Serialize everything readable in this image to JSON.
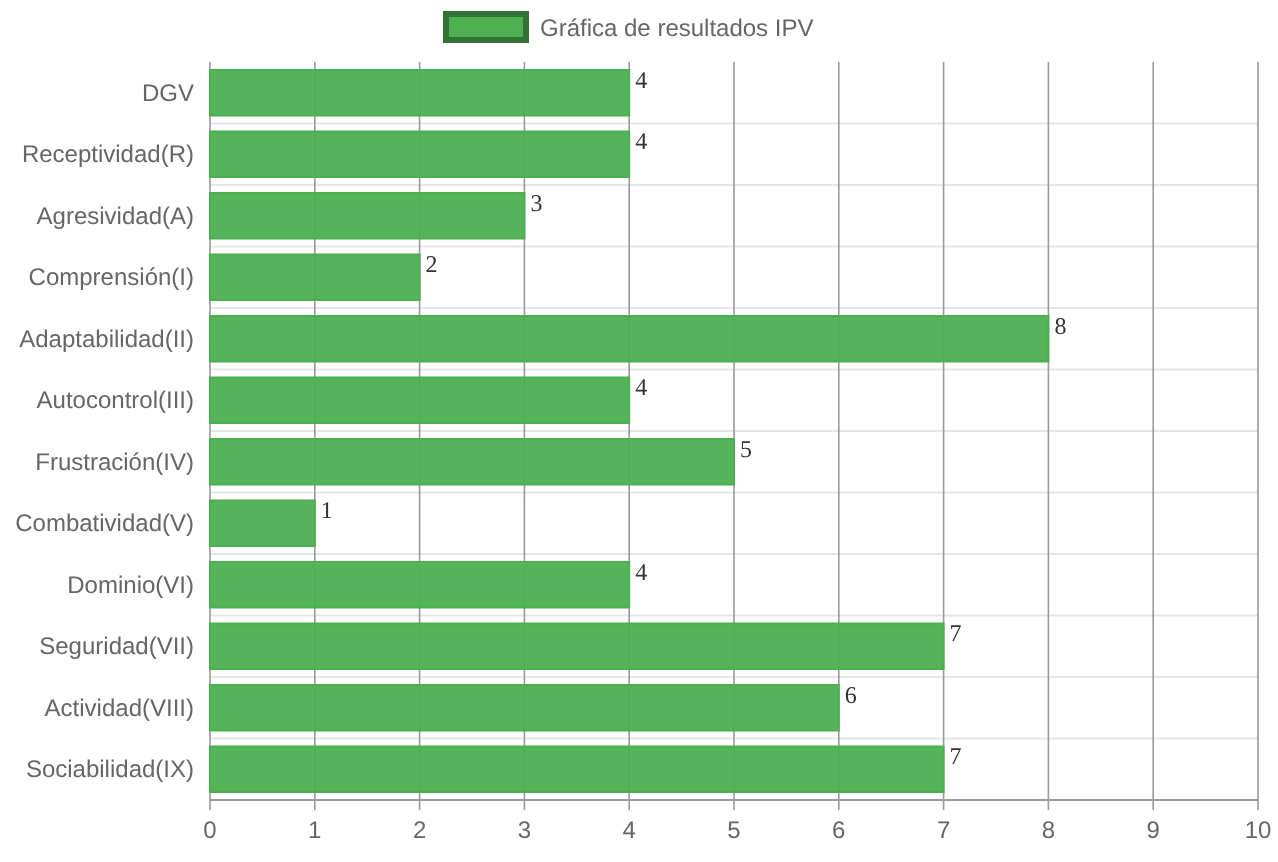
{
  "chart_data": {
    "type": "bar",
    "orientation": "horizontal",
    "categories": [
      "DGV",
      "Receptividad(R)",
      "Agresividad(A)",
      "Comprensión(I)",
      "Adaptabilidad(II)",
      "Autocontrol(III)",
      "Frustración(IV)",
      "Combatividad(V)",
      "Dominio(VI)",
      "Seguridad(VII)",
      "Actividad(VIII)",
      "Sociabilidad(IX)"
    ],
    "series": [
      {
        "name": "Gráfica de resultados IPV",
        "color": "#4caf50",
        "values": [
          4,
          4,
          3,
          2,
          8,
          4,
          5,
          1,
          4,
          7,
          6,
          7
        ]
      }
    ],
    "xlim": [
      0,
      10
    ],
    "xticks": [
      0,
      1,
      2,
      3,
      4,
      5,
      6,
      7,
      8,
      9,
      10
    ],
    "grid": true,
    "legend": "top",
    "data_labels": true
  }
}
